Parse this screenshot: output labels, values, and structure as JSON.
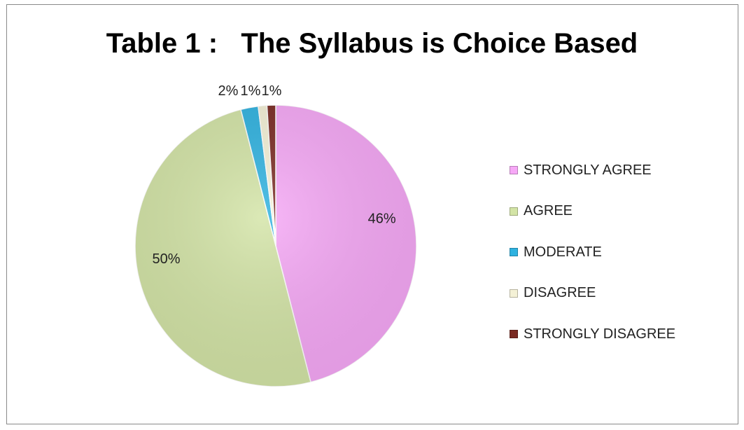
{
  "chart_data": {
    "type": "pie",
    "title": "Table 1 :   The Syllabus is Choice Based",
    "categories": [
      "STRONGLY AGREE",
      "AGREE",
      "MODERATE",
      "DISAGREE",
      "STRONGLY DISAGREE"
    ],
    "values": [
      46,
      50,
      2,
      1,
      1
    ],
    "labels": [
      "46%",
      "50%",
      "2%",
      "1%",
      "1%"
    ],
    "colors": [
      "#f6a8f6",
      "#d3e4a6",
      "#2eb2e0",
      "#f4f1d6",
      "#7a2a22"
    ],
    "legend_position": "right"
  }
}
